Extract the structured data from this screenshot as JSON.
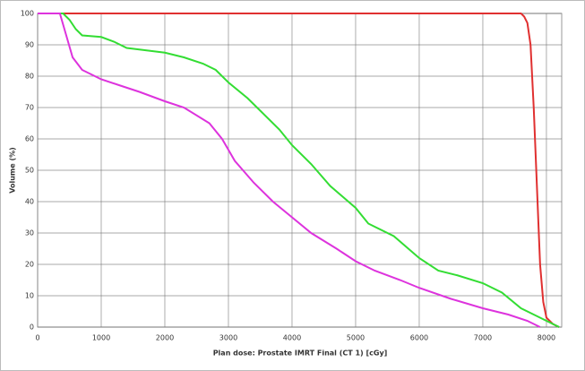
{
  "chart_data": {
    "type": "line",
    "xlabel": "Plan dose: Prostate IMRT Final (CT 1) [cGy]",
    "ylabel": "Volume (%)",
    "xlim": [
      0,
      8240
    ],
    "ylim": [
      0,
      100
    ],
    "xticks": [
      0,
      1000,
      2000,
      3000,
      4000,
      5000,
      6000,
      7000,
      8000
    ],
    "yticks": [
      0,
      10,
      20,
      30,
      40,
      50,
      60,
      70,
      80,
      90,
      100
    ],
    "grid": true,
    "series": [
      {
        "color": "#e03030",
        "x": [
          0,
          7600,
          7650,
          7700,
          7750,
          7800,
          7850,
          7900,
          7950,
          8000,
          8100,
          8200
        ],
        "values": [
          100,
          100,
          99,
          97,
          90,
          70,
          45,
          20,
          8,
          3,
          1,
          0
        ]
      },
      {
        "color": "#33dd33",
        "x": [
          0,
          400,
          500,
          600,
          700,
          1000,
          1200,
          1400,
          1800,
          2000,
          2300,
          2600,
          2800,
          3000,
          3300,
          3500,
          3800,
          4000,
          4300,
          4600,
          5000,
          5200,
          5600,
          6000,
          6300,
          6600,
          7000,
          7300,
          7600,
          7800,
          8000,
          8200
        ],
        "values": [
          100,
          100,
          98,
          95,
          93,
          92.5,
          91,
          89,
          88,
          87.5,
          86,
          84,
          82,
          78,
          73,
          69,
          63,
          58,
          52,
          45,
          38,
          33,
          29,
          22,
          18,
          16.5,
          14,
          11,
          6,
          4,
          2,
          0
        ]
      },
      {
        "color": "#dd33dd",
        "x": [
          0,
          350,
          450,
          550,
          700,
          1000,
          1300,
          1600,
          2000,
          2300,
          2700,
          2900,
          3100,
          3400,
          3700,
          4000,
          4300,
          4700,
          5000,
          5300,
          5700,
          6000,
          6500,
          7000,
          7400,
          7700,
          7900
        ],
        "values": [
          100,
          100,
          93,
          86,
          82,
          79,
          77,
          75,
          72,
          70,
          65,
          60,
          53,
          46,
          40,
          35,
          30,
          25,
          21,
          18,
          15,
          12.5,
          9,
          6,
          4,
          2,
          0
        ]
      }
    ]
  }
}
